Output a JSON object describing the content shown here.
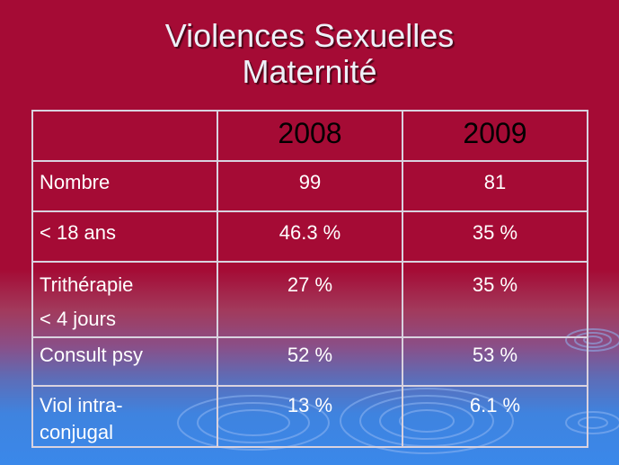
{
  "slide": {
    "title_line1": "Violences Sexuelles",
    "title_line2": "Maternité"
  },
  "table": {
    "columns": [
      "",
      "2008",
      "2009"
    ],
    "rows": [
      {
        "label": "Nombre",
        "v2008": "99",
        "v2009": "81"
      },
      {
        "label": "< 18 ans",
        "v2008": "46.3 %",
        "v2009": "35 %"
      },
      {
        "label_line1": "Trithérapie",
        "label_line2": "< 4 jours",
        "v2008": "27 %",
        "v2009": "35 %"
      },
      {
        "label": "Consult psy",
        "v2008": "52 %",
        "v2009": "53 %"
      },
      {
        "label_line1": "Viol intra-",
        "label_line2": "conjugal",
        "v2008": "13 %",
        "v2009": "6.1 %"
      }
    ]
  },
  "colors": {
    "background_top": "#a50b35",
    "background_bottom": "#3a88ea",
    "text": "#ffffff",
    "year_header_text": "#000000",
    "grid_lines": "#d9d2df"
  }
}
